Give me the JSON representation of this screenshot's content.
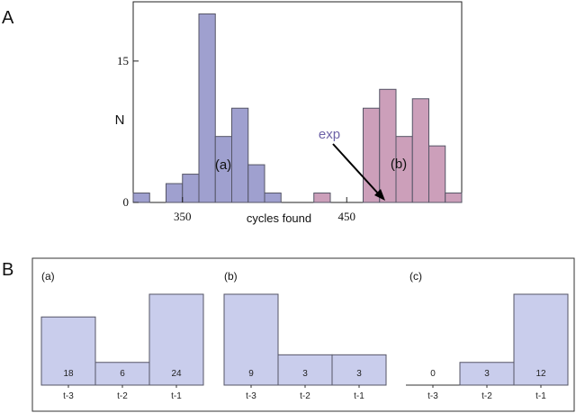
{
  "colors": {
    "series_a": "#9fa0cf",
    "series_b": "#cc9fba",
    "bar_edge": "#555566",
    "small_bar": "#c9cdec",
    "small_edge": "#556",
    "annotation": "#6e63a8"
  },
  "panel_a": {
    "letter": "A",
    "chart_data": {
      "type": "bar",
      "title": "",
      "xlabel": "cycles found",
      "ylabel": "N",
      "xlim": [
        320,
        520
      ],
      "ylim": [
        0,
        21
      ],
      "bin_width": 10,
      "x_ticks": [
        350,
        450
      ],
      "y_ticks": [
        0,
        15
      ],
      "grid": false,
      "series": [
        {
          "name": "(a)",
          "x": [
            320,
            340,
            350,
            360,
            370,
            380,
            390,
            400
          ],
          "values": [
            1,
            2,
            3,
            20,
            7,
            10,
            4,
            1
          ]
        },
        {
          "name": "(b)",
          "x": [
            430,
            460,
            470,
            480,
            490,
            500,
            510
          ],
          "values": [
            1,
            10,
            12,
            7,
            11,
            6,
            1
          ]
        }
      ],
      "annotations": [
        {
          "text": "exp",
          "arrow_to": {
            "x": 475,
            "y": 0
          }
        }
      ]
    }
  },
  "panel_b": {
    "letter": "B",
    "chart_data": [
      {
        "type": "bar",
        "label": "(a)",
        "categories": [
          "t-3",
          "t-2",
          "t-1"
        ],
        "values": [
          18,
          6,
          24
        ],
        "ylim": [
          0,
          24
        ]
      },
      {
        "type": "bar",
        "label": "(b)",
        "categories": [
          "t-3",
          "t-2",
          "t-1"
        ],
        "values": [
          9,
          3,
          3
        ],
        "ylim": [
          0,
          9
        ]
      },
      {
        "type": "bar",
        "label": "(c)",
        "categories": [
          "t-3",
          "t-2",
          "t-1"
        ],
        "values": [
          0,
          3,
          12
        ],
        "ylim": [
          0,
          12
        ]
      }
    ]
  }
}
